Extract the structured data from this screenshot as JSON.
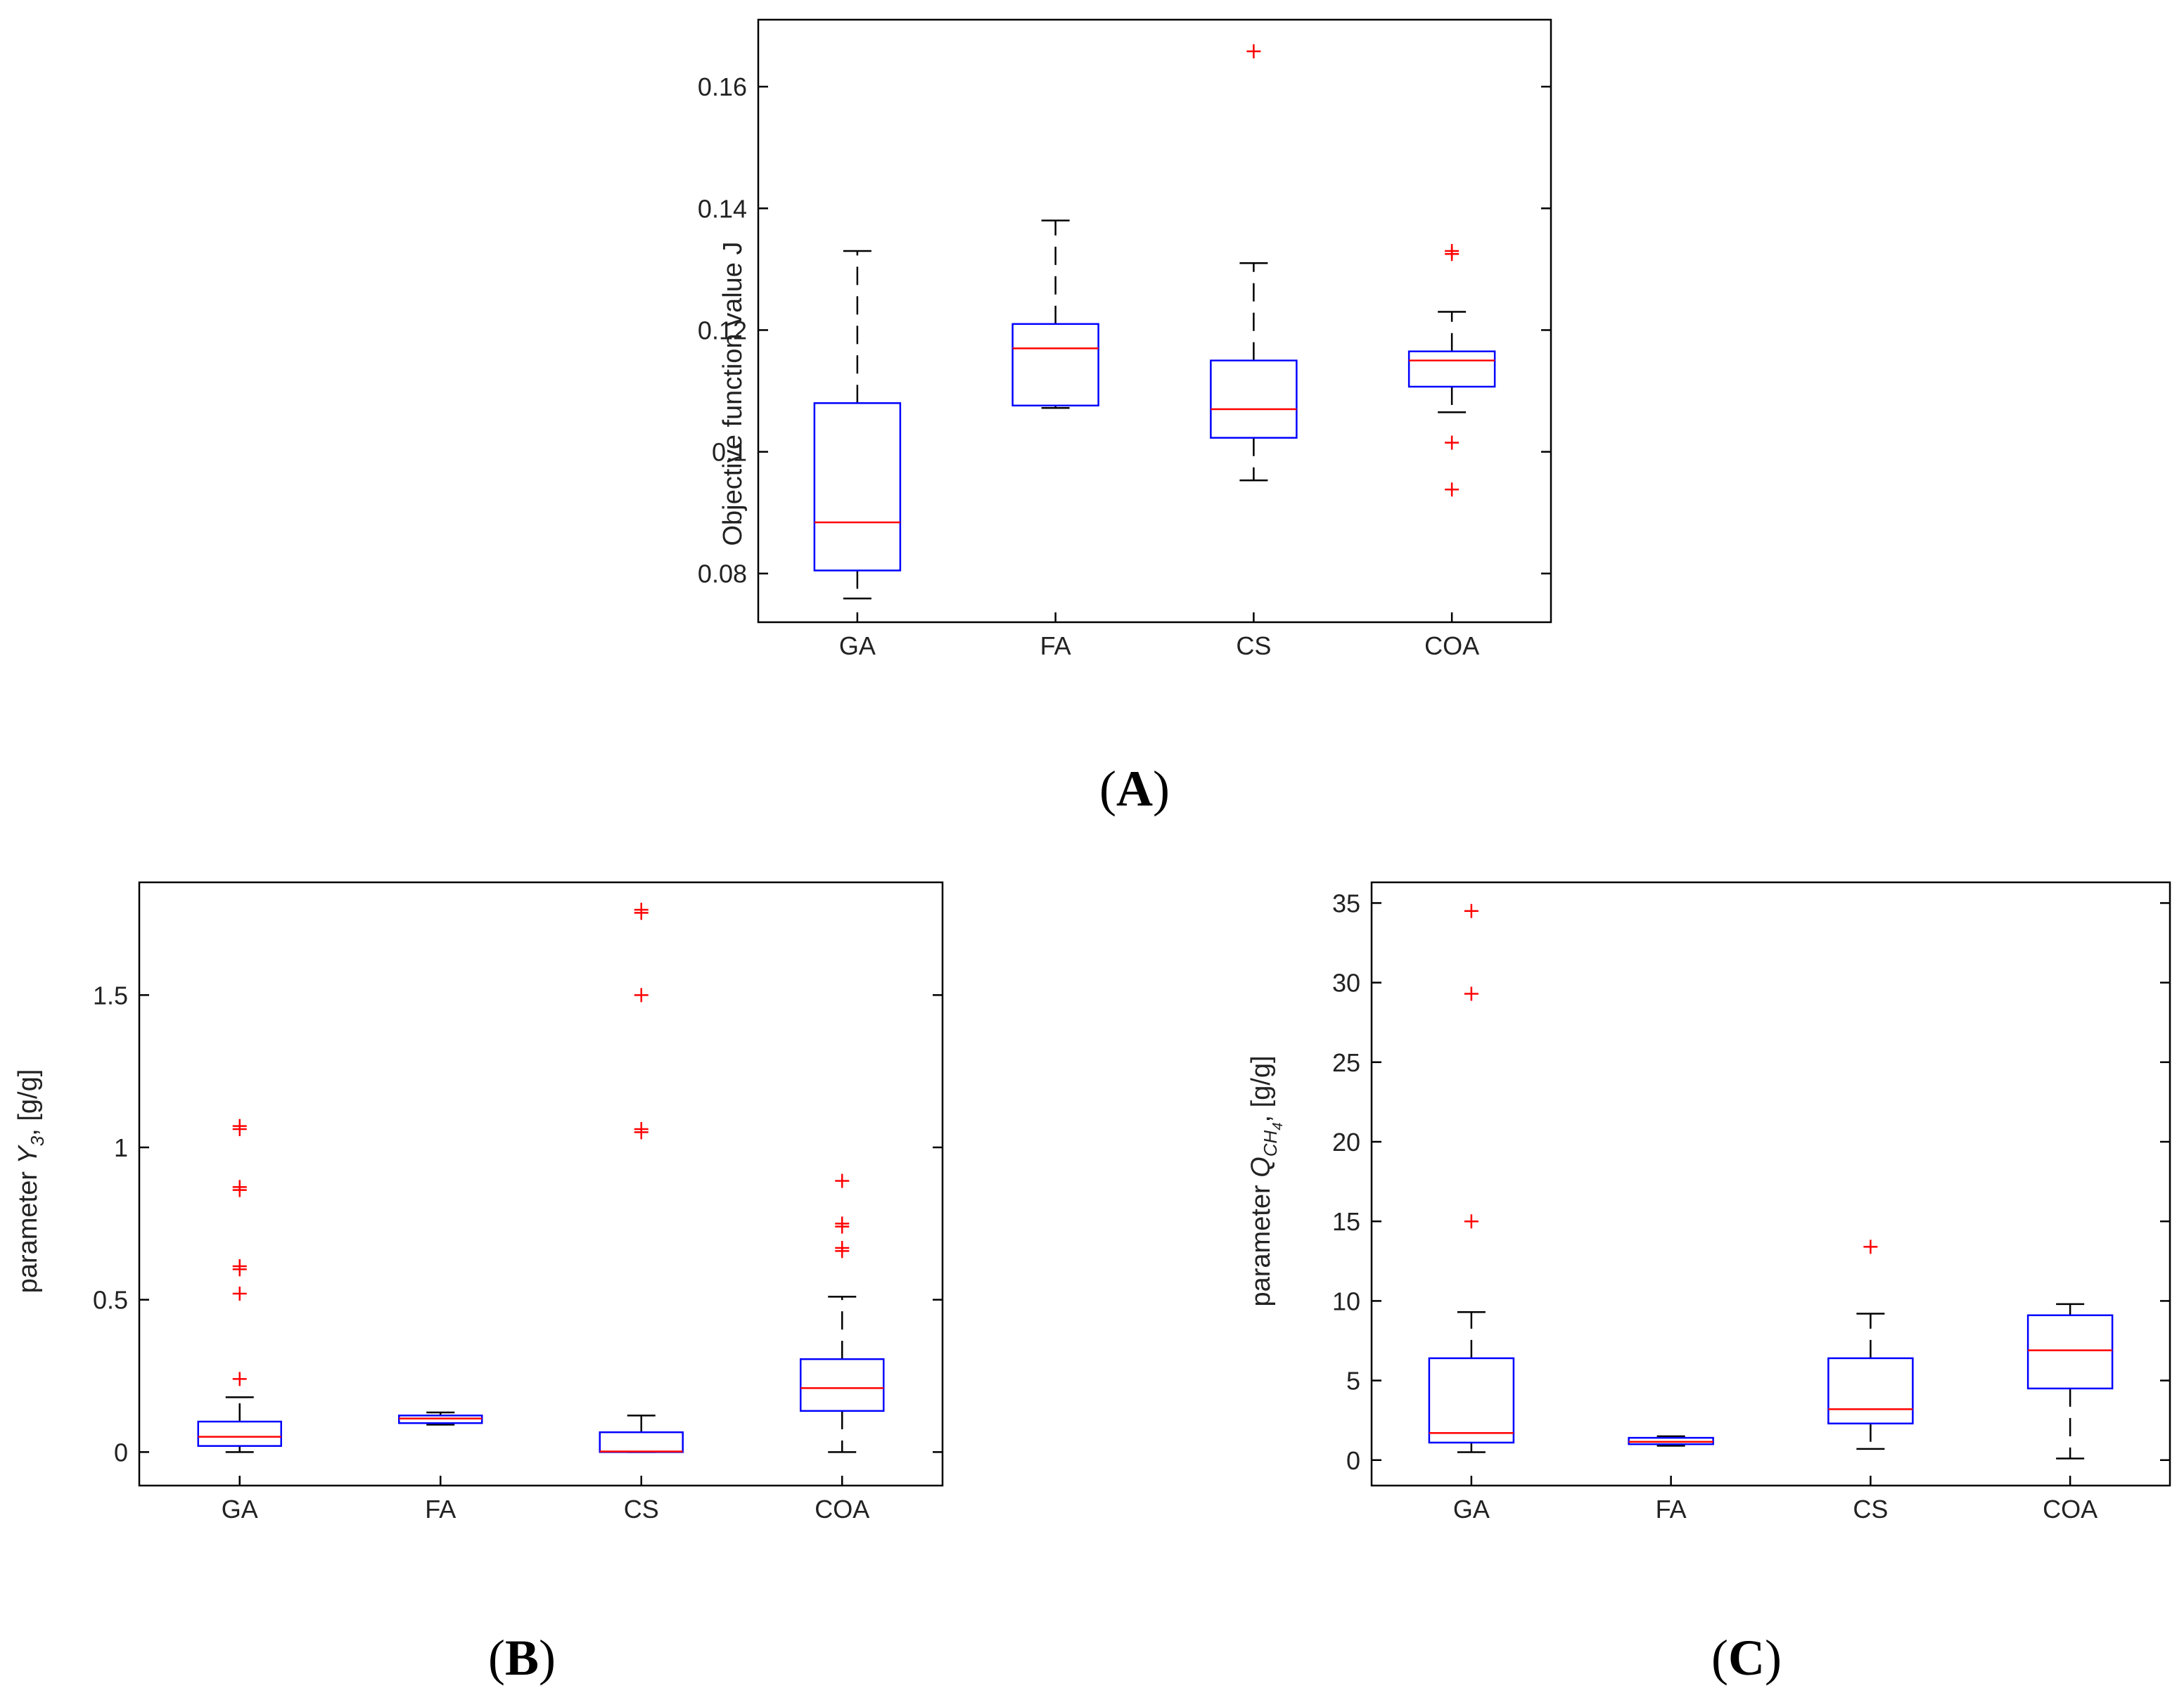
{
  "panels": {
    "A": {
      "label": "A"
    },
    "B": {
      "label": "B"
    },
    "C": {
      "label": "C"
    }
  },
  "chart_data": [
    {
      "id": "A",
      "type": "boxplot",
      "panel_label": "A",
      "ylabel": "Objective function value J",
      "categories": [
        "GA",
        "FA",
        "CS",
        "COA"
      ],
      "ylim": [
        0.072,
        0.171
      ],
      "yticks": [
        0.08,
        0.1,
        0.12,
        0.14,
        0.16
      ],
      "ytick_labels": [
        "0.08",
        "0.1",
        "0.12",
        "0.14",
        "0.16"
      ],
      "boxes": [
        {
          "category": "GA",
          "whisker_low": 0.0759,
          "q1": 0.0805,
          "median": 0.0884,
          "q3": 0.108,
          "whisker_high": 0.133,
          "outliers": []
        },
        {
          "category": "FA",
          "whisker_low": 0.1072,
          "q1": 0.1076,
          "median": 0.117,
          "q3": 0.121,
          "whisker_high": 0.138,
          "outliers": []
        },
        {
          "category": "CS",
          "whisker_low": 0.0953,
          "q1": 0.1023,
          "median": 0.107,
          "q3": 0.115,
          "whisker_high": 0.131,
          "outliers": [
            0.1658
          ]
        },
        {
          "category": "COA",
          "whisker_low": 0.1065,
          "q1": 0.1107,
          "median": 0.115,
          "q3": 0.1165,
          "whisker_high": 0.123,
          "outliers": [
            0.133,
            0.1325,
            0.1015,
            0.0938
          ]
        }
      ]
    },
    {
      "id": "B",
      "type": "boxplot",
      "panel_label": "B",
      "ylabel_prefix": "parameter ",
      "ylabel_symbol": "Y",
      "ylabel_sub": "3",
      "ylabel_suffix": ", [g/g]",
      "categories": [
        "GA",
        "FA",
        "CS",
        "COA"
      ],
      "ylim": [
        -0.11,
        1.87
      ],
      "yticks": [
        0,
        0.5,
        1,
        1.5
      ],
      "ytick_labels": [
        "0",
        "0.5",
        "1",
        "1.5"
      ],
      "boxes": [
        {
          "category": "GA",
          "whisker_low": 0.0,
          "q1": 0.02,
          "median": 0.05,
          "q3": 0.1,
          "whisker_high": 0.18,
          "outliers": [
            0.24,
            0.52,
            0.6,
            0.61,
            0.86,
            0.87,
            1.06,
            1.07
          ]
        },
        {
          "category": "FA",
          "whisker_low": 0.09,
          "q1": 0.095,
          "median": 0.11,
          "q3": 0.12,
          "whisker_high": 0.13,
          "outliers": []
        },
        {
          "category": "CS",
          "whisker_low": 0.0,
          "q1": 0.0,
          "median": 0.002,
          "q3": 0.065,
          "whisker_high": 0.12,
          "outliers": [
            1.06,
            1.05,
            1.5,
            1.78,
            1.77
          ]
        },
        {
          "category": "COA",
          "whisker_low": 0.0,
          "q1": 0.135,
          "median": 0.21,
          "q3": 0.305,
          "whisker_high": 0.51,
          "outliers": [
            0.66,
            0.67,
            0.74,
            0.75,
            0.89
          ]
        }
      ]
    },
    {
      "id": "C",
      "type": "boxplot",
      "panel_label": "C",
      "ylabel_prefix": "parameter ",
      "ylabel_symbol": "Q",
      "ylabel_sub": "CH",
      "ylabel_subsub": "4",
      "ylabel_suffix": ", [g/g]",
      "categories": [
        "GA",
        "FA",
        "CS",
        "COA"
      ],
      "ylim": [
        -1.6,
        36.3
      ],
      "yticks": [
        0,
        5,
        10,
        15,
        20,
        25,
        30,
        35
      ],
      "ytick_labels": [
        "0",
        "5",
        "10",
        "15",
        "20",
        "25",
        "30",
        "35"
      ],
      "boxes": [
        {
          "category": "GA",
          "whisker_low": 0.5,
          "q1": 1.1,
          "median": 1.7,
          "q3": 6.4,
          "whisker_high": 9.3,
          "outliers": [
            15.0,
            29.3,
            34.5
          ]
        },
        {
          "category": "FA",
          "whisker_low": 0.9,
          "q1": 1.0,
          "median": 1.15,
          "q3": 1.4,
          "whisker_high": 1.5,
          "outliers": []
        },
        {
          "category": "CS",
          "whisker_low": 0.7,
          "q1": 2.3,
          "median": 3.2,
          "q3": 6.4,
          "whisker_high": 9.2,
          "outliers": [
            13.4
          ]
        },
        {
          "category": "COA",
          "whisker_low": 0.1,
          "q1": 4.5,
          "median": 6.9,
          "q3": 9.1,
          "whisker_high": 9.8,
          "outliers": []
        }
      ]
    }
  ]
}
